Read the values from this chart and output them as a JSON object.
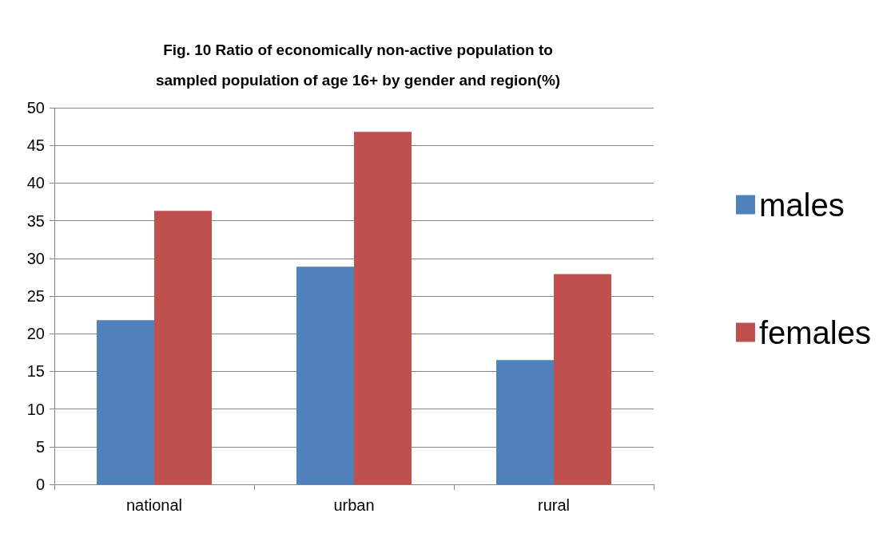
{
  "chart_data": {
    "type": "bar",
    "title": "Fig. 10 Ratio of economically non-active population to\nsampled population of age 16+ by gender and region(%)",
    "categories": [
      "national",
      "urban",
      "rural"
    ],
    "series": [
      {
        "name": "males",
        "color": "#4f81bd",
        "values": [
          21.8,
          28.9,
          16.5
        ]
      },
      {
        "name": "females",
        "color": "#c0504d",
        "values": [
          36.3,
          46.8,
          27.9
        ]
      }
    ],
    "ylim": [
      0,
      50
    ],
    "yticks": [
      0,
      5,
      10,
      15,
      20,
      25,
      30,
      35,
      40,
      45,
      50
    ],
    "grid": "y",
    "legend": "right"
  }
}
